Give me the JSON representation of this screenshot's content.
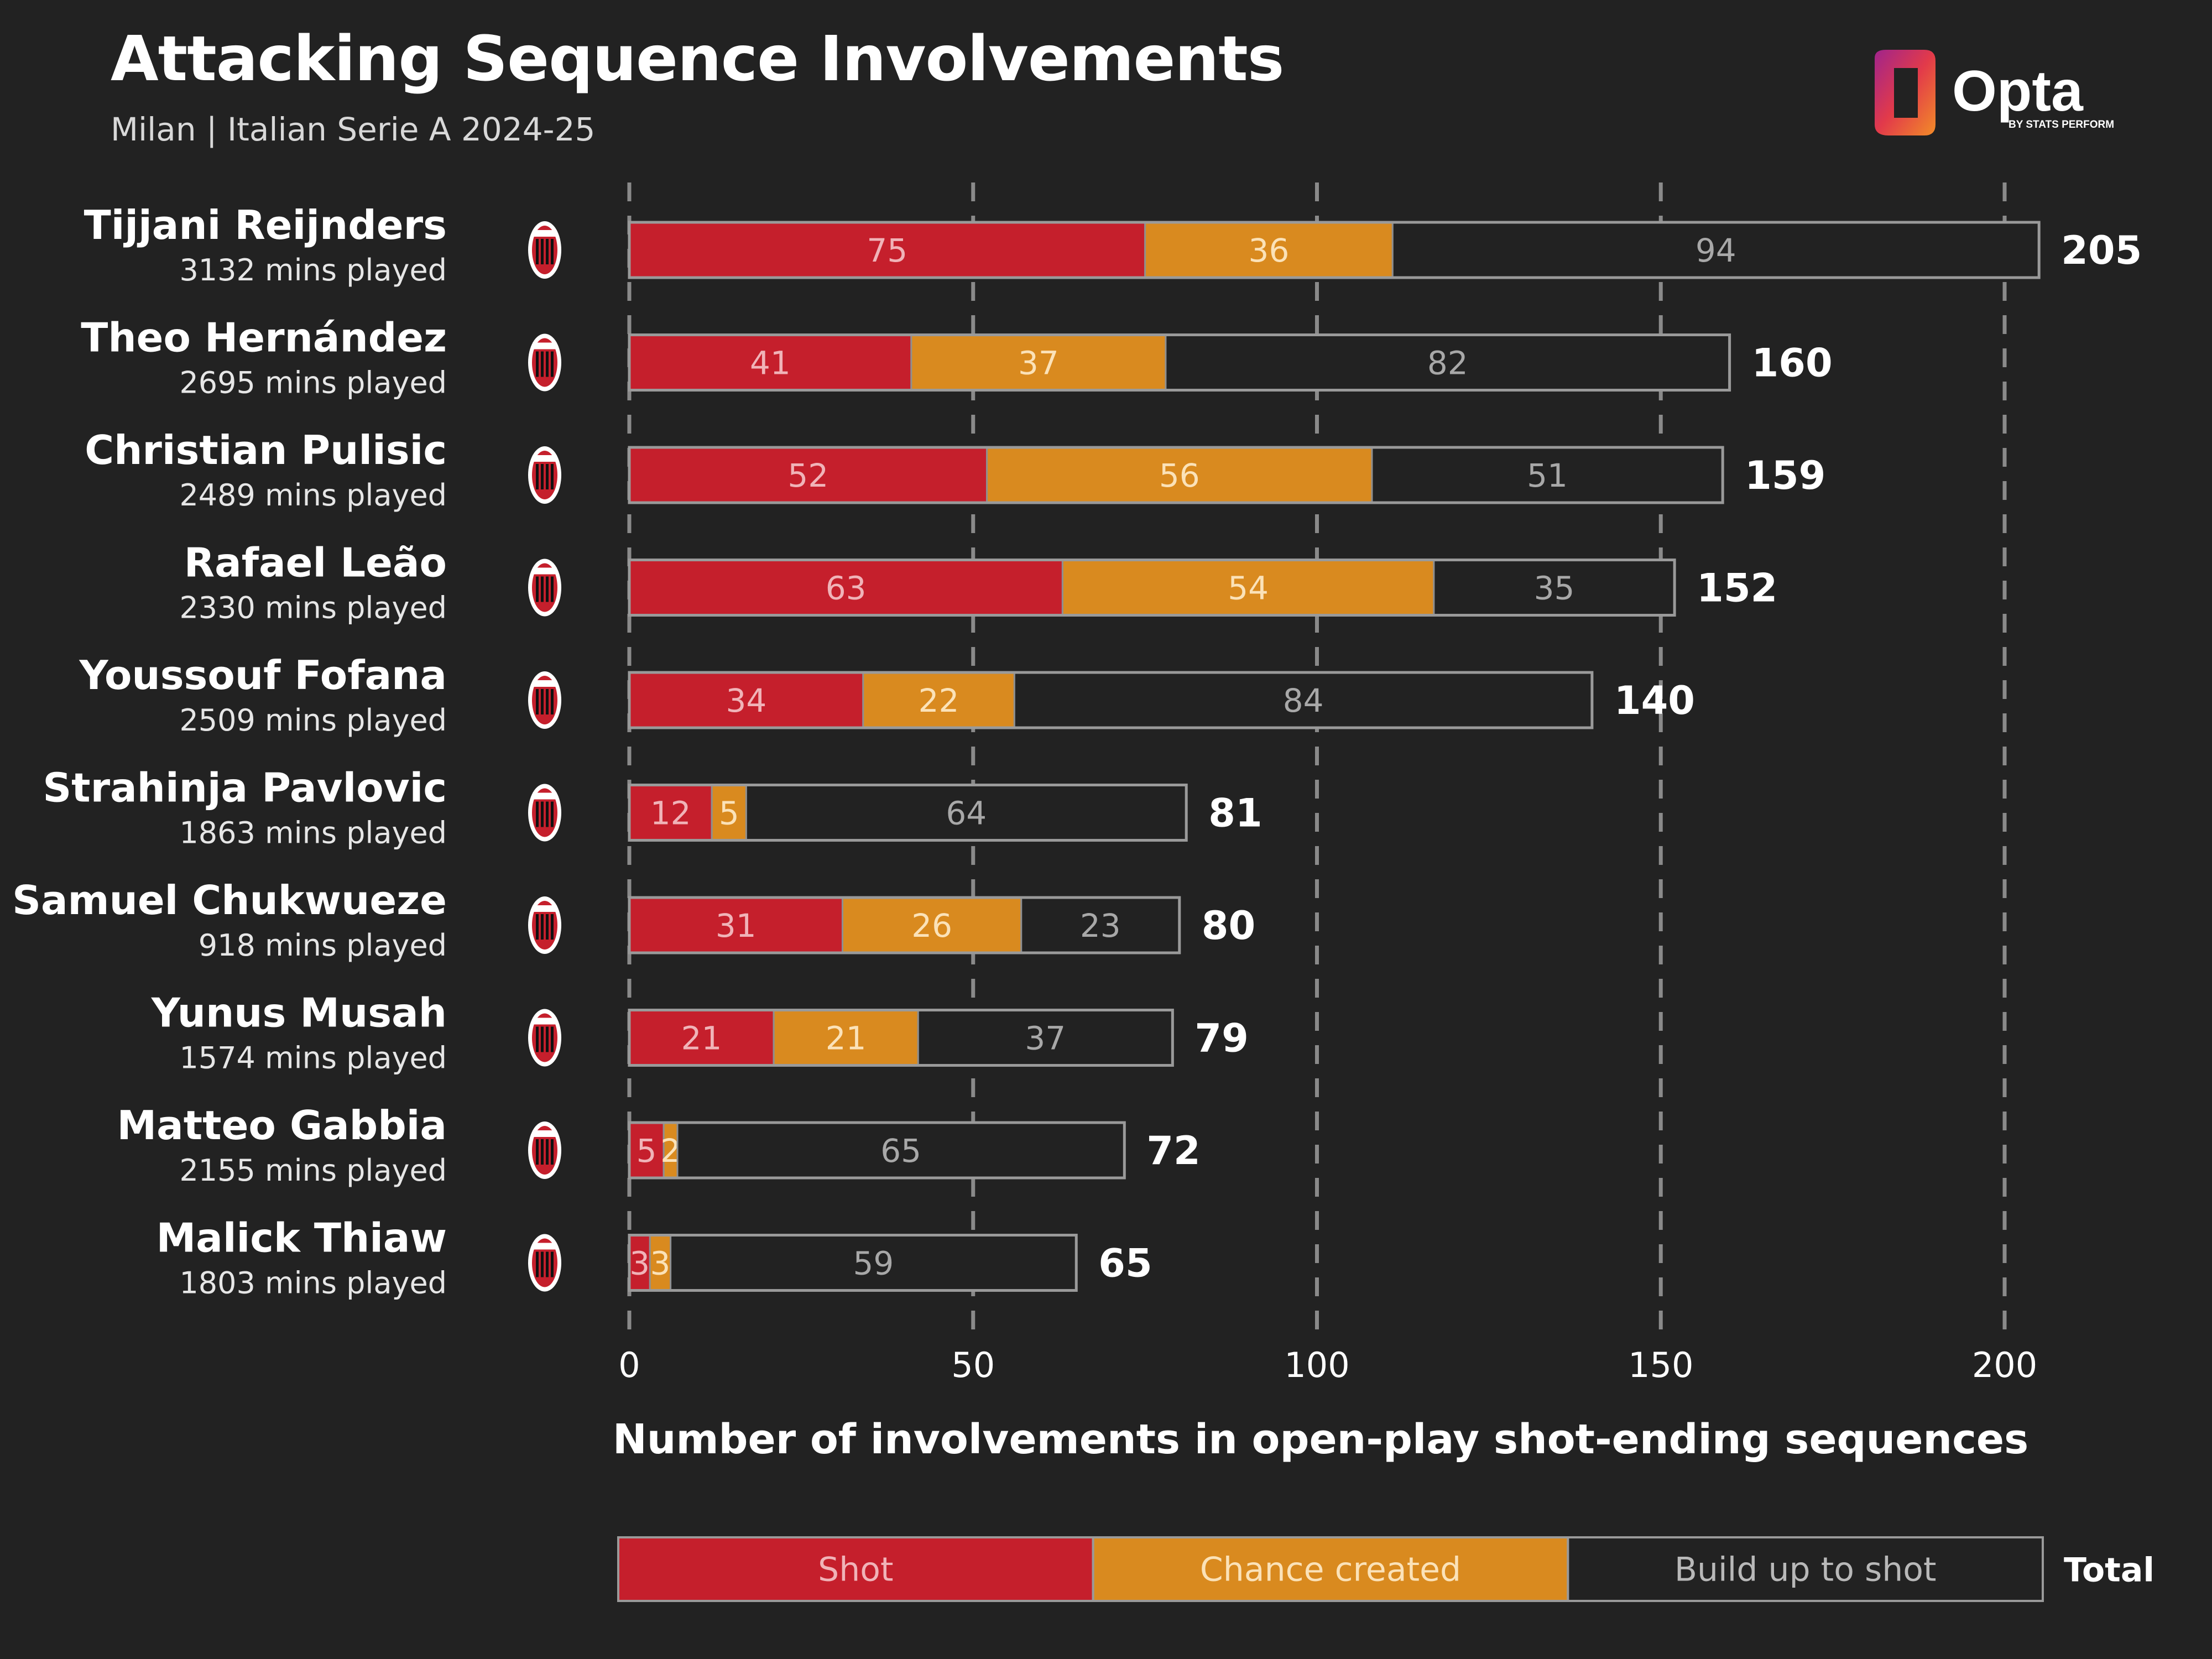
{
  "header": {
    "title": "Attacking Sequence Involvements",
    "subtitle": "Milan | Italian Serie A 2024-25"
  },
  "brand": {
    "name": "Opta",
    "tagline": "BY STATS PERFORM"
  },
  "colors": {
    "background": "#222222",
    "shot": "#c51f2c",
    "chance_created": "#d98a1f",
    "build_up": "#222222",
    "outline": "#9a9a9a",
    "text": "#ffffff",
    "muted_text": "#d8d8d8"
  },
  "icons": {
    "club_badge": "ac-milan-crest-icon"
  },
  "chart_data": {
    "type": "bar",
    "orientation": "horizontal",
    "stacked": true,
    "xlabel": "Number of involvements in open-play shot-ending sequences",
    "xlim": [
      0,
      200
    ],
    "xticks": [
      0,
      50,
      100,
      150,
      200
    ],
    "grid": "vertical dashed",
    "legend_position": "bottom",
    "total_label": "Total",
    "players": [
      {
        "name": "Tijjani Reijnders",
        "minutes": "3132 mins played"
      },
      {
        "name": "Theo Hernández",
        "minutes": "2695 mins played"
      },
      {
        "name": "Christian Pulisic",
        "minutes": "2489 mins played"
      },
      {
        "name": "Rafael Leão",
        "minutes": "2330 mins played"
      },
      {
        "name": "Youssouf Fofana",
        "minutes": "2509 mins played"
      },
      {
        "name": "Strahinja Pavlovic",
        "minutes": "1863 mins played"
      },
      {
        "name": "Samuel Chukwueze",
        "minutes": "918 mins played"
      },
      {
        "name": "Yunus Musah",
        "minutes": "1574 mins played"
      },
      {
        "name": "Matteo Gabbia",
        "minutes": "2155 mins played"
      },
      {
        "name": "Malick Thiaw",
        "minutes": "1803 mins played"
      }
    ],
    "series": [
      {
        "name": "Shot",
        "values": [
          75,
          41,
          52,
          63,
          34,
          12,
          31,
          21,
          5,
          3
        ]
      },
      {
        "name": "Chance created",
        "values": [
          36,
          37,
          56,
          54,
          22,
          5,
          26,
          21,
          2,
          3
        ]
      },
      {
        "name": "Build up to shot",
        "values": [
          94,
          82,
          51,
          35,
          84,
          64,
          23,
          37,
          65,
          59
        ]
      }
    ],
    "totals": [
      205,
      160,
      159,
      152,
      140,
      81,
      80,
      79,
      72,
      65
    ]
  }
}
